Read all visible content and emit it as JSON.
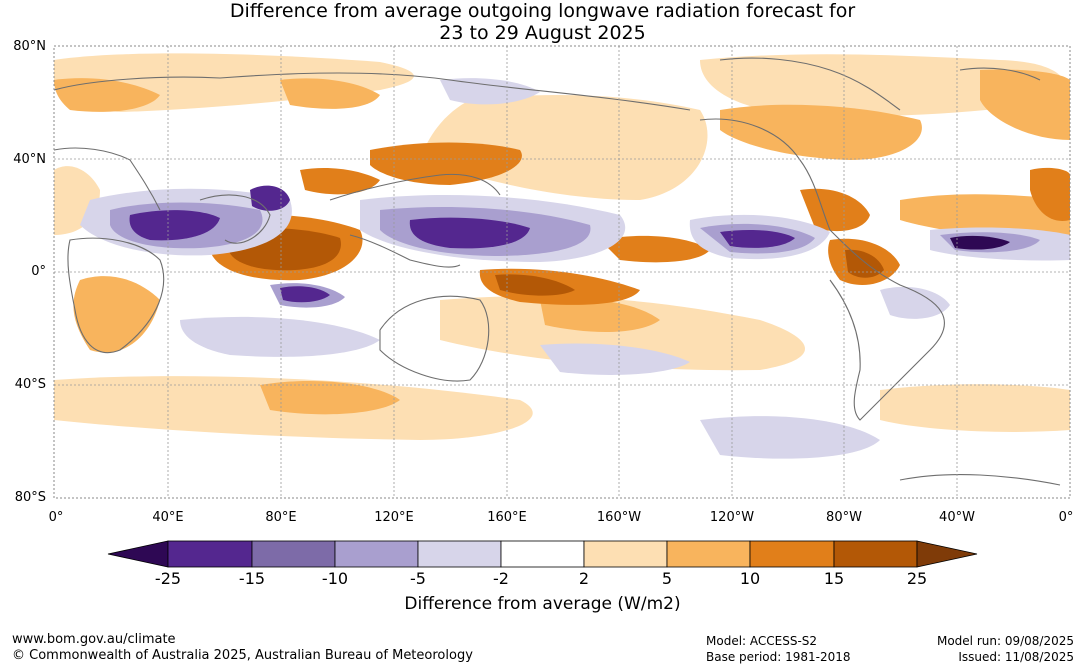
{
  "title": {
    "line1": "Difference from average outgoing longwave radiation forecast for",
    "line2": "23 to 29 August 2025"
  },
  "map": {
    "lat_labels": [
      "80°N",
      "40°N",
      "0°",
      "40°S",
      "80°S"
    ],
    "lon_labels": [
      "0°",
      "40°E",
      "80°E",
      "120°E",
      "160°E",
      "160°W",
      "120°W",
      "80°W",
      "40°W",
      "0°"
    ]
  },
  "colorbar": {
    "labels": [
      "-25",
      "-15",
      "-10",
      "-5",
      "-2",
      "2",
      "5",
      "10",
      "15",
      "25"
    ],
    "colors": [
      "#2e0854",
      "#54278f",
      "#7d6ba8",
      "#a99fcf",
      "#d7d5ea",
      "#ffffff",
      "#fddfb3",
      "#f8b45d",
      "#e17f1a",
      "#b35806",
      "#7f3b08"
    ],
    "title": "Difference from average (W/m2)"
  },
  "footer": {
    "website": "www.bom.gov.au/climate",
    "copyright": "© Commonwealth of Australia 2025, Australian Bureau of Meteorology",
    "model": "Model: ACCESS-S2",
    "base_period": "Base period: 1981-2018",
    "model_run": "Model run: 09/08/2025",
    "issued": "Issued: 11/08/2025"
  }
}
